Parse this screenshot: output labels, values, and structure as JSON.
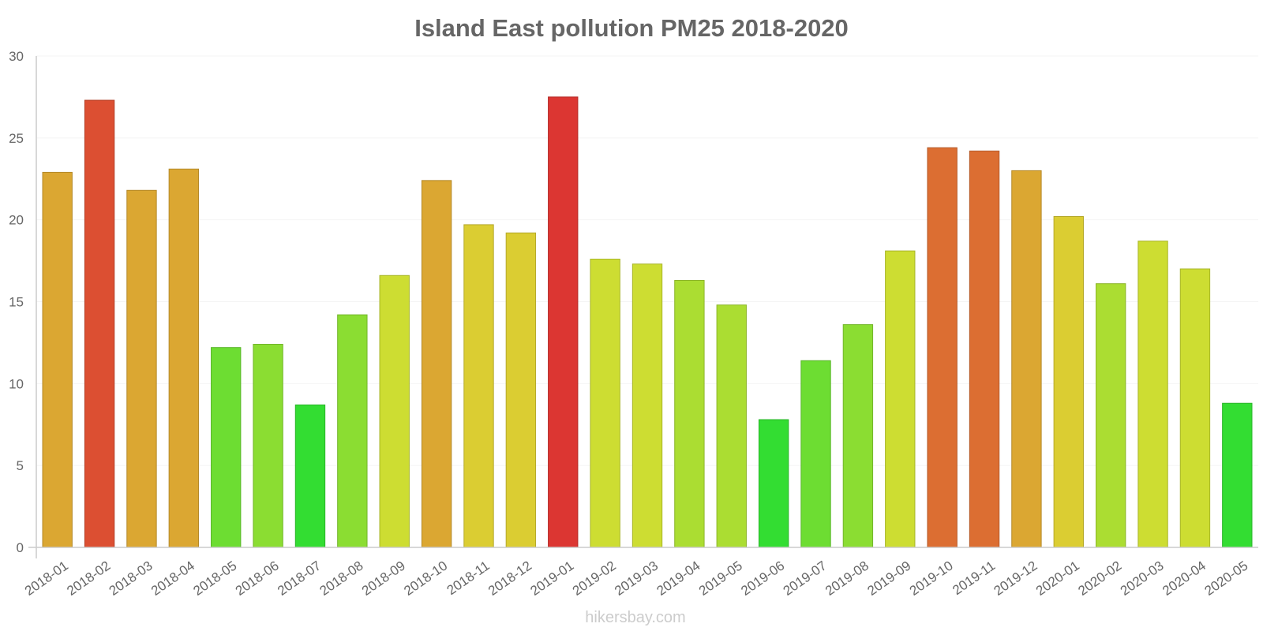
{
  "chart_data": {
    "type": "bar",
    "title": "Island East pollution PM25 2018-2020",
    "xlabel": "",
    "ylabel": "",
    "ylim": [
      0,
      30
    ],
    "yticks": [
      0,
      5,
      10,
      15,
      20,
      25,
      30
    ],
    "grid": true,
    "categories": [
      "2018-01",
      "2018-02",
      "2018-03",
      "2018-04",
      "2018-05",
      "2018-06",
      "2018-07",
      "2018-08",
      "2018-09",
      "2018-10",
      "2018-11",
      "2018-12",
      "2019-01",
      "2019-02",
      "2019-03",
      "2019-04",
      "2019-05",
      "2019-06",
      "2019-07",
      "2019-08",
      "2019-09",
      "2019-10",
      "2019-11",
      "2019-12",
      "2020-01",
      "2020-02",
      "2020-03",
      "2020-04",
      "2020-05"
    ],
    "values": [
      22.9,
      27.3,
      21.8,
      23.1,
      12.2,
      12.4,
      8.7,
      14.2,
      16.6,
      22.4,
      19.7,
      19.2,
      27.5,
      17.6,
      17.3,
      16.3,
      14.8,
      7.8,
      11.4,
      13.6,
      18.1,
      24.4,
      24.2,
      23.0,
      20.2,
      16.1,
      18.7,
      17.0,
      8.8
    ],
    "colors": [
      "#dba732",
      "#dc4f32",
      "#dba732",
      "#dba732",
      "#6ddd32",
      "#8bdd32",
      "#33dd32",
      "#8bdd32",
      "#cddd32",
      "#dba732",
      "#dbcd32",
      "#dbcd32",
      "#dc3632",
      "#cddd32",
      "#cddd32",
      "#abdd32",
      "#abdd32",
      "#33dd32",
      "#6ddd32",
      "#8bdd32",
      "#cddd32",
      "#dc6e32",
      "#dc6e32",
      "#dba732",
      "#dbcd32",
      "#abdd32",
      "#cddd32",
      "#cddd32",
      "#33dd32"
    ]
  },
  "watermark": "hikersbay.com"
}
